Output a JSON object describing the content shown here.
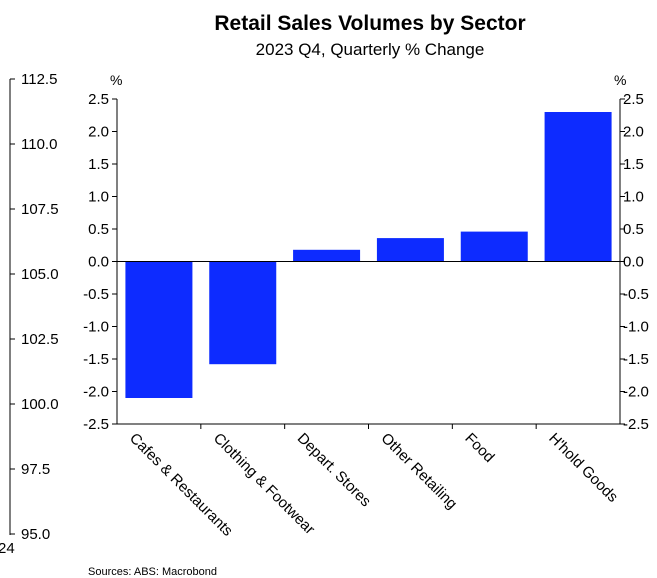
{
  "chart_data": {
    "type": "bar",
    "title": "Retail Sales Volumes by Sector",
    "subtitle": "2023 Q4, Quarterly % Change",
    "unit_left": "%",
    "unit_right": "%",
    "categories": [
      "Cafes & Restaurants",
      "Clothing & Footwear",
      "Depart. Stores",
      "Other Retailing",
      "Food",
      "H'hold Goods"
    ],
    "values": [
      -2.1,
      -1.58,
      0.18,
      0.36,
      0.46,
      2.3
    ],
    "ylim": [
      -2.5,
      2.5
    ],
    "yticks": [
      "2.5",
      "2.0",
      "1.5",
      "1.0",
      "0.5",
      "0.0",
      "-0.5",
      "-1.0",
      "-1.5",
      "-2.0",
      "-2.5"
    ],
    "bar_color": "#0d2bff",
    "background_axis": {
      "ticks": [
        "112.5",
        "110.0",
        "107.5",
        "105.0",
        "102.5",
        "100.0",
        "97.5",
        "95.0"
      ],
      "partial_label": "24"
    },
    "grid": false,
    "source": "Sources: ABS: Macrobond"
  }
}
